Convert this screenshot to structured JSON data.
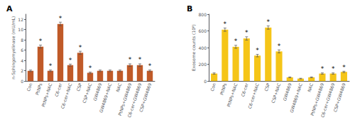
{
  "chart_data": [
    {
      "type": "bar",
      "title": "A",
      "ylabel": "n-Sphingomyelinase (mU/mL)",
      "categories": [
        "Con",
        "PtNPs",
        "PtNPs+NAC",
        "C6-cer",
        "C6-cer+NAC",
        "CSP",
        "CSP+NAC",
        "GW4869",
        "GW4869+NAC",
        "NAC",
        "PtNPs+GW4869",
        "C6-cer+GW4869",
        "CSP+GW4869"
      ],
      "values": [
        2.0,
        6.7,
        2.0,
        11.1,
        3.1,
        5.5,
        1.6,
        2.0,
        2.0,
        2.0,
        3.1,
        3.1,
        2.0
      ],
      "errors": [
        0.15,
        0.3,
        0.15,
        0.35,
        0.2,
        0.3,
        0.15,
        0.15,
        0.15,
        0.15,
        0.25,
        0.25,
        0.15
      ],
      "annotations": [
        {
          "category": "PtNPs",
          "text": "*"
        },
        {
          "category": "PtNPs+NAC",
          "text": "*"
        },
        {
          "category": "C6-cer",
          "text": "*"
        },
        {
          "category": "C6-cer+NAC",
          "text": "*"
        },
        {
          "category": "CSP",
          "text": "*"
        },
        {
          "category": "CSP+NAC",
          "text": "*"
        },
        {
          "category": "PtNPs+GW4869",
          "text": "*"
        },
        {
          "category": "C6-cer+GW4869",
          "text": "*"
        },
        {
          "category": "CSP+GW4869",
          "text": "*"
        }
      ],
      "color": "#C05A28",
      "ylim": [
        0,
        13
      ],
      "yticks": [
        0,
        2,
        4,
        6,
        8,
        10,
        12
      ],
      "grid": false
    },
    {
      "type": "bar",
      "title": "B",
      "ylabel": "Exosome counts (10⁸)",
      "categories": [
        "Con",
        "PtNPs",
        "PtNPs+NAC",
        "C6-cer",
        "C6-cer+NAC",
        "CSP",
        "CSP+NAC",
        "GW4869",
        "GW4869+NAC",
        "NAC",
        "PtNPs+GW4869",
        "C6-cer+GW4869",
        "CSP+GW4869"
      ],
      "values": [
        90,
        615,
        410,
        510,
        305,
        640,
        355,
        45,
        30,
        45,
        90,
        90,
        110
      ],
      "errors": [
        8,
        20,
        18,
        20,
        15,
        20,
        18,
        5,
        4,
        5,
        8,
        8,
        8
      ],
      "annotations": [
        {
          "category": "PtNPs",
          "text": "*"
        },
        {
          "category": "PtNPs+NAC",
          "text": "*"
        },
        {
          "category": "C6-cer",
          "text": "*"
        },
        {
          "category": "C6-cer+NAC",
          "text": "*"
        },
        {
          "category": "CSP",
          "text": "*"
        },
        {
          "category": "CSP+NAC",
          "text": "*"
        },
        {
          "category": "PtNPs+GW4869",
          "text": "*"
        },
        {
          "category": "C6-cer+GW4869",
          "text": "*"
        },
        {
          "category": "CSP+GW4869",
          "text": "*"
        }
      ],
      "color": "#F5C518",
      "ylim": [
        0,
        800
      ],
      "yticks": [
        0,
        200,
        400,
        600,
        800
      ],
      "grid": false
    }
  ]
}
